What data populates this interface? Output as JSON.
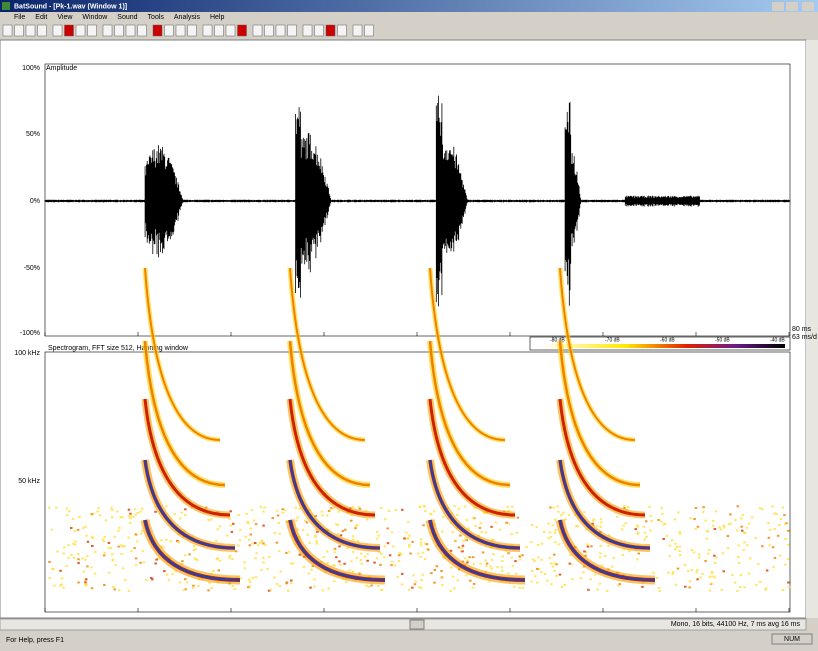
{
  "window": {
    "title": "BatSound - [Pk-1.wav (Window 1)]",
    "menu": [
      "File",
      "Edit",
      "View",
      "Window",
      "Sound",
      "Tools",
      "Analysis",
      "Help"
    ]
  },
  "waveform": {
    "label": "Amplitude",
    "yticks": [
      "100%",
      "50%",
      "0%",
      "-50%",
      "-100%"
    ],
    "side_labels": [
      "80 ms",
      "63 ms/d"
    ]
  },
  "spectrogram": {
    "title": "Spectrogram, FFT size 512, Hanning window",
    "yticks": [
      "100 kHz",
      "50 kHz"
    ],
    "legend": [
      "-80 dB",
      "-70 dB",
      "-60 dB",
      "-50 dB",
      "-40 dB"
    ]
  },
  "status": {
    "info": "Mono, 16 bits, 44100 Hz, 7 ms avg 16 ms",
    "help": "For Help, press F1",
    "num": "NUM"
  }
}
